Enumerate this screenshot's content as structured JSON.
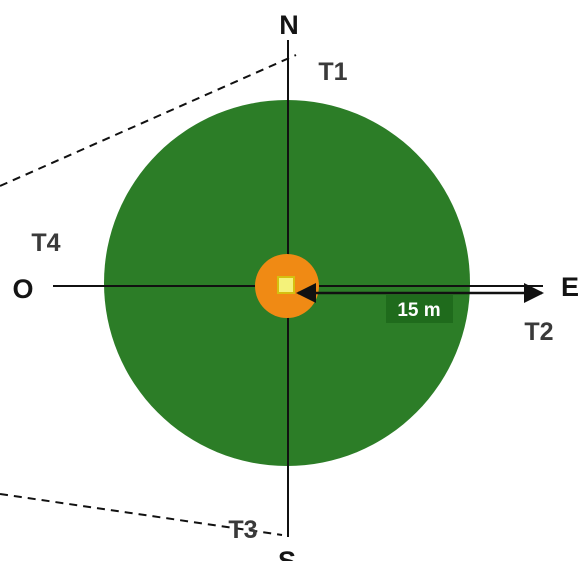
{
  "compass": {
    "north": "N",
    "east": "E",
    "south": "S",
    "west": "O"
  },
  "transects": {
    "t1": "T1",
    "t2": "T2",
    "t3": "T3",
    "t4": "T4"
  },
  "scale": {
    "radius_label": "15 m"
  },
  "colors": {
    "plot_circle": "#2c7d27",
    "center_ring": "#f08a14",
    "center_marker": "#f4f27a",
    "label_box": "#1f6b1c",
    "lines": "#111111"
  }
}
